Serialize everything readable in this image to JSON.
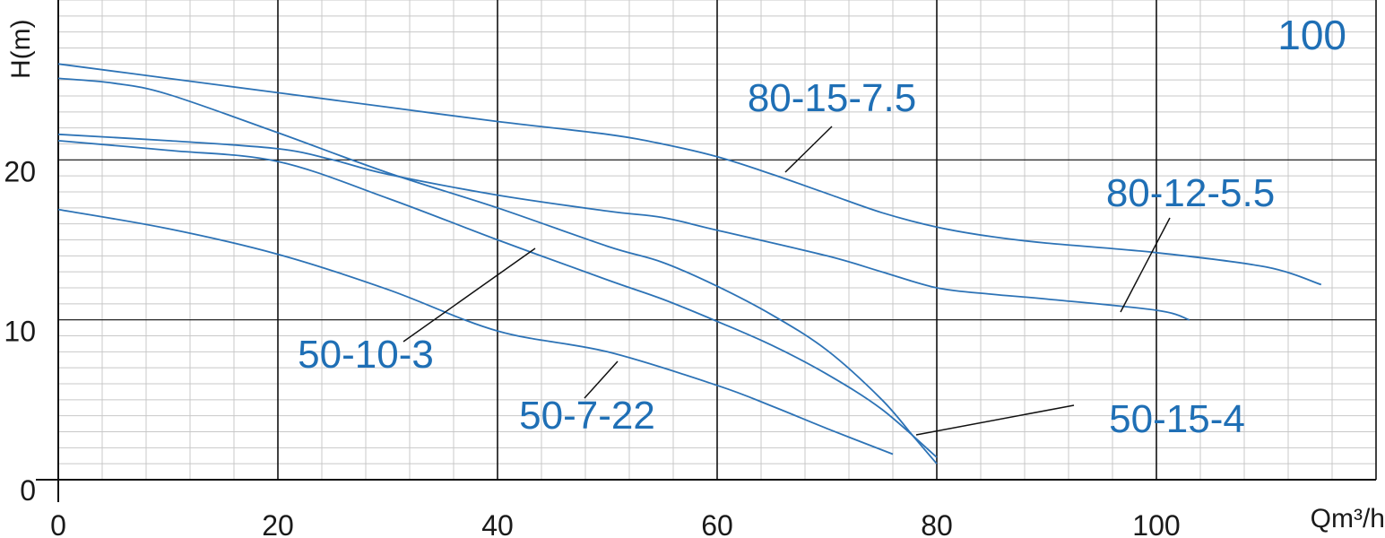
{
  "colors": {
    "curve": "#2d73b6",
    "label": "#1f6fb5",
    "grid_minor": "#c8c8c8",
    "grid_major": "#111111",
    "axis": "#111111"
  },
  "chart_data": {
    "type": "line",
    "xlabel": "Qm³/h",
    "ylabel": "H(m)",
    "corner_label": "100",
    "xlim": [
      0,
      120
    ],
    "ylim": [
      0,
      30
    ],
    "x_ticks": [
      {
        "value": 0,
        "label": "0"
      },
      {
        "value": 20,
        "label": "20"
      },
      {
        "value": 40,
        "label": "40"
      },
      {
        "value": 60,
        "label": "60"
      },
      {
        "value": 80,
        "label": "80"
      },
      {
        "value": 100,
        "label": "100"
      }
    ],
    "y_ticks": [
      {
        "value": 0,
        "label": "0"
      },
      {
        "value": 10,
        "label": "10"
      },
      {
        "value": 20,
        "label": "20"
      }
    ],
    "grid": true,
    "series": [
      {
        "name": "80-15-7.5",
        "x": [
          0,
          10,
          20,
          30,
          40,
          50,
          55,
          60,
          65,
          70,
          75,
          80,
          85,
          90,
          100,
          110,
          115
        ],
        "y": [
          26.0,
          25.1,
          24.2,
          23.3,
          22.4,
          21.6,
          21.0,
          20.2,
          19.1,
          17.9,
          16.7,
          15.8,
          15.2,
          14.8,
          14.2,
          13.3,
          12.2
        ]
      },
      {
        "name": "80-12-5.5",
        "x": [
          0,
          10,
          20,
          25,
          30,
          40,
          50,
          55,
          60,
          70,
          75,
          80,
          85,
          90,
          100,
          103
        ],
        "y": [
          21.6,
          21.2,
          20.7,
          20.0,
          19.1,
          17.8,
          16.8,
          16.4,
          15.6,
          14.0,
          13.0,
          12.0,
          11.6,
          11.3,
          10.6,
          10.0
        ]
      },
      {
        "name": "50-15-4",
        "x": [
          0,
          5,
          10,
          20,
          30,
          40,
          50,
          55,
          60,
          65,
          70,
          75,
          78,
          80
        ],
        "y": [
          25.1,
          24.8,
          24.1,
          21.7,
          19.2,
          17.0,
          14.6,
          13.6,
          12.1,
          10.3,
          8.1,
          5.0,
          2.6,
          1.0
        ]
      },
      {
        "name": "50-10-3",
        "x": [
          0,
          10,
          20,
          30,
          40,
          50,
          55,
          60,
          65,
          70,
          75,
          80
        ],
        "y": [
          21.2,
          20.6,
          19.9,
          17.6,
          15.0,
          12.5,
          11.3,
          9.9,
          8.4,
          6.6,
          4.4,
          1.4
        ]
      },
      {
        "name": "50-7-22",
        "x": [
          0,
          10,
          20,
          30,
          40,
          50,
          60,
          65,
          70,
          76
        ],
        "y": [
          16.9,
          15.7,
          14.1,
          11.9,
          9.3,
          8.0,
          5.9,
          4.6,
          3.2,
          1.6
        ]
      }
    ]
  }
}
